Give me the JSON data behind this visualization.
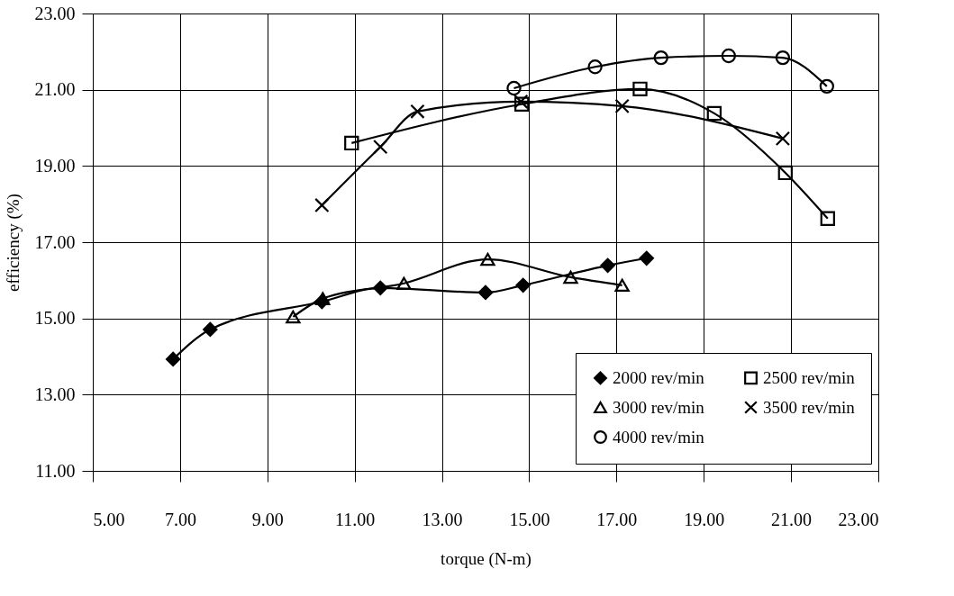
{
  "chart_data": {
    "type": "line",
    "xlabel": "torque (N-m)",
    "ylabel": "efficiency (%)",
    "xlim": [
      5,
      23
    ],
    "xticks": [
      {
        "value": 5,
        "label": "5.00"
      },
      {
        "value": 7,
        "label": "7.00"
      },
      {
        "value": 9,
        "label": "9.00"
      },
      {
        "value": 11,
        "label": "11.00"
      },
      {
        "value": 13,
        "label": "13.00"
      },
      {
        "value": 15,
        "label": "15.00"
      },
      {
        "value": 17,
        "label": "17.00"
      },
      {
        "value": 19,
        "label": "19.00"
      },
      {
        "value": 21,
        "label": "21.00"
      },
      {
        "value": 23,
        "label": "23.00"
      }
    ],
    "ylim": [
      11,
      23
    ],
    "yticks": [
      {
        "value": 11,
        "label": "11.00"
      },
      {
        "value": 13,
        "label": "13.00"
      },
      {
        "value": 15,
        "label": "15.00"
      },
      {
        "value": 17,
        "label": "17.00"
      },
      {
        "value": 19,
        "label": "19.00"
      },
      {
        "value": 21,
        "label": "21.00"
      },
      {
        "value": 23,
        "label": "23.00"
      }
    ],
    "grid": true,
    "legend": "bottom right",
    "line_style": "solid",
    "series": [
      {
        "name": "2000 rev/min",
        "color": "#000000",
        "marker": "diamond",
        "x": [
          6.84,
          7.69,
          10.25,
          11.59,
          14.0,
          14.86,
          16.8,
          17.69
        ],
        "values": [
          13.93,
          14.71,
          15.44,
          15.8,
          15.68,
          15.87,
          16.39,
          16.58
        ]
      },
      {
        "name": "3000 rev/min",
        "color": "#000000",
        "marker": "triangle",
        "x": [
          9.59,
          10.27,
          12.13,
          14.05,
          15.95,
          17.13
        ],
        "values": [
          15.04,
          15.52,
          15.92,
          16.55,
          16.08,
          15.87
        ]
      },
      {
        "name": "4000 rev/min",
        "color": "#000000",
        "marker": "circle",
        "x": [
          14.65,
          16.51,
          18.02,
          19.57,
          20.81,
          21.82
        ],
        "values": [
          21.04,
          21.6,
          21.84,
          21.89,
          21.84,
          21.09
        ]
      },
      {
        "name": "2500 rev/min",
        "color": "#000000",
        "marker": "square",
        "x": [
          10.93,
          14.83,
          17.54,
          19.24,
          20.87,
          21.84
        ],
        "values": [
          19.6,
          20.62,
          21.02,
          20.38,
          18.82,
          17.62
        ]
      },
      {
        "name": "3500 rev/min",
        "color": "#000000",
        "marker": "cross",
        "x": [
          10.25,
          11.59,
          12.44,
          14.81,
          17.13,
          20.81
        ],
        "values": [
          17.97,
          19.5,
          20.43,
          20.69,
          20.57,
          19.72
        ]
      }
    ]
  }
}
